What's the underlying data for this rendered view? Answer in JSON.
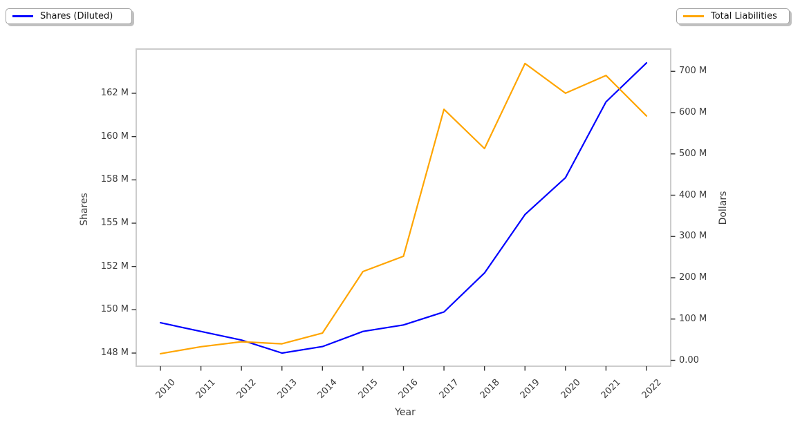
{
  "chart_data": {
    "type": "line",
    "title": "",
    "xlabel": "Year",
    "ylabel_left": "Shares",
    "ylabel_right": "Dollars",
    "grid": false,
    "x": [
      2010,
      2011,
      2012,
      2013,
      2014,
      2015,
      2016,
      2017,
      2018,
      2019,
      2020,
      2021,
      2022
    ],
    "x_tick_labels": [
      "2010",
      "2011",
      "2012",
      "2013",
      "2014",
      "2015",
      "2016",
      "2017",
      "2018",
      "2019",
      "2020",
      "2021",
      "2022"
    ],
    "series": [
      {
        "name": "Shares (Diluted)",
        "axis": "left",
        "color": "#0000ff",
        "values_millions": [
          149.4,
          149.0,
          148.6,
          148.0,
          148.3,
          149.0,
          149.3,
          149.9,
          151.7,
          155.6,
          158.1,
          161.6,
          163.4
        ]
      },
      {
        "name": "Total Liabilities",
        "axis": "right",
        "color": "#ffa500",
        "values_millions": [
          16,
          33,
          45,
          40,
          66,
          215,
          252,
          608,
          513,
          719,
          647,
          690,
          592
        ]
      }
    ],
    "left_axis": {
      "label": "Shares",
      "tick_values_millions": [
        148,
        150,
        152,
        155,
        158,
        160,
        162
      ],
      "tick_labels": [
        "148 M",
        "150 M",
        "152 M",
        "155 M",
        "158 M",
        "160 M",
        "162 M"
      ],
      "ylim_hint_millions": [
        147.4,
        164.0
      ]
    },
    "right_axis": {
      "label": "Dollars",
      "tick_values_millions": [
        0,
        100,
        200,
        300,
        400,
        500,
        600,
        700
      ],
      "tick_labels": [
        "0.00",
        "100 M",
        "200 M",
        "300 M",
        "400 M",
        "500 M",
        "600 M",
        "700 M"
      ],
      "ylim_hint_millions": [
        -19,
        754
      ]
    },
    "legend": [
      {
        "label": "Shares (Diluted)",
        "color": "#0000ff",
        "position": "upper-left"
      },
      {
        "label": "Total Liabilities",
        "color": "#ffa500",
        "position": "upper-right"
      }
    ],
    "frame_color": "#cccccc",
    "tick_color": "#333333"
  }
}
